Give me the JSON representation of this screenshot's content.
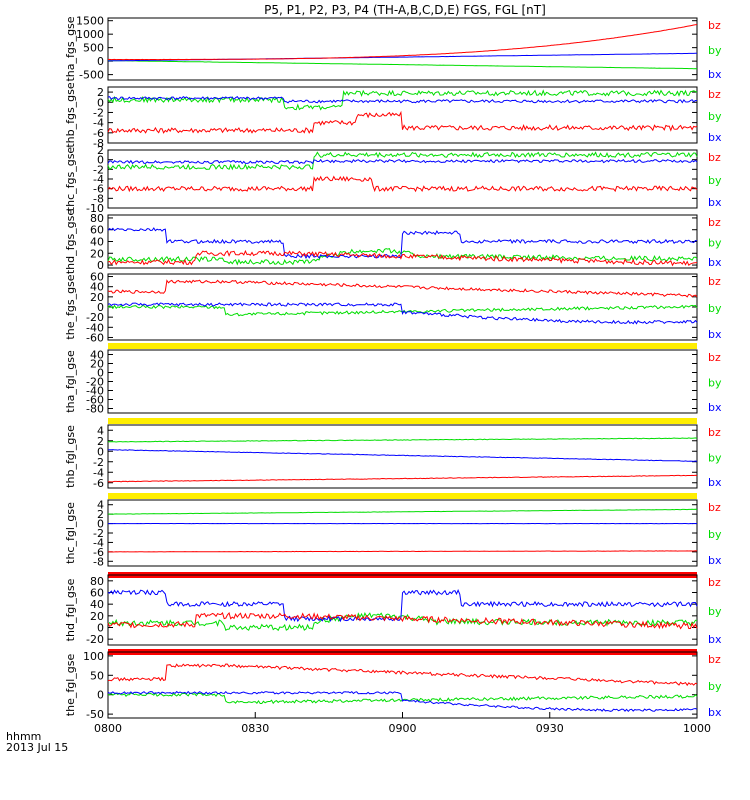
{
  "chart_data": {
    "type": "line",
    "title": "P5, P1, P2, P3, P4 (TH-A,B,C,D,E) FGS, FGL [nT]",
    "x_ticks": [
      "0800",
      "0830",
      "0900",
      "0930",
      "1000"
    ],
    "x_label": "hhmm",
    "date_label": "2013 Jul 15",
    "colors": {
      "bz": "#ff0000",
      "by": "#00dd00",
      "bx": "#0000ff"
    },
    "panels": [
      {
        "ylabel": "tha_fgs_gse",
        "ylim": [
          -700,
          1600
        ],
        "yticks": [
          "1500",
          "1000",
          "500",
          "0",
          "-500"
        ],
        "yvals": [
          1500,
          1000,
          500,
          0,
          -500
        ],
        "legend": [
          "bz",
          "by",
          "bx"
        ],
        "bar_after": null
      },
      {
        "ylabel": "thb_fgs_gse",
        "ylim": [
          -8,
          3
        ],
        "yticks": [
          "2",
          "0",
          "-2",
          "-4",
          "-6",
          "-8"
        ],
        "yvals": [
          2,
          0,
          -2,
          -4,
          -6,
          -8
        ],
        "legend": [
          "bz",
          "by",
          "bx"
        ],
        "bar_after": null
      },
      {
        "ylabel": "thc_fgs_gse",
        "ylim": [
          -10,
          2
        ],
        "yticks": [
          "2",
          "0",
          "-2",
          "-4",
          "-6",
          "-8",
          "-10"
        ],
        "yvals": [
          2,
          0,
          -2,
          -4,
          -6,
          -8,
          -10
        ],
        "legend": [
          "bz",
          "by",
          "bx"
        ],
        "bar_after": null
      },
      {
        "ylabel": "thd_fgs_gse",
        "ylim": [
          -5,
          85
        ],
        "yticks": [
          "80",
          "60",
          "40",
          "20",
          "0"
        ],
        "yvals": [
          80,
          60,
          40,
          20,
          0
        ],
        "legend": [
          "bz",
          "by",
          "bx"
        ],
        "bar_after": null
      },
      {
        "ylabel": "the_fgs_gse",
        "ylim": [
          -65,
          65
        ],
        "yticks": [
          "60",
          "40",
          "20",
          "0",
          "-20",
          "-40",
          "-60"
        ],
        "yvals": [
          60,
          40,
          20,
          0,
          -20,
          -40,
          -60
        ],
        "legend": [
          "bz",
          "by",
          "bx"
        ],
        "bar_after": "yellow"
      },
      {
        "ylabel": "tha_fgl_gse",
        "ylim": [
          -90,
          50
        ],
        "yticks": [
          "40",
          "20",
          "0",
          "-20",
          "-40",
          "-60",
          "-80"
        ],
        "yvals": [
          40,
          20,
          0,
          -20,
          -40,
          -60,
          -80
        ],
        "legend": [
          "bz",
          "by",
          "bx"
        ],
        "bar_after": "yellow"
      },
      {
        "ylabel": "thb_fgl_gse",
        "ylim": [
          -7,
          5
        ],
        "yticks": [
          "4",
          "2",
          "0",
          "-2",
          "-4",
          "-6"
        ],
        "yvals": [
          4,
          2,
          0,
          -2,
          -4,
          -6
        ],
        "legend": [
          "bz",
          "by",
          "bx"
        ],
        "bar_after": "yellow"
      },
      {
        "ylabel": "thc_fgl_gse",
        "ylim": [
          -9,
          5
        ],
        "yticks": [
          "4",
          "2",
          "0",
          "-2",
          "-4",
          "-6",
          "-8"
        ],
        "yvals": [
          4,
          2,
          0,
          -2,
          -4,
          -6,
          -8
        ],
        "legend": [
          "bz",
          "by",
          "bx"
        ],
        "bar_after": "red"
      },
      {
        "ylabel": "thd_fgl_gse",
        "ylim": [
          -30,
          90
        ],
        "yticks": [
          "80",
          "60",
          "40",
          "20",
          "0",
          "-20"
        ],
        "yvals": [
          80,
          60,
          40,
          20,
          0,
          -20
        ],
        "legend": [
          "bz",
          "by",
          "bx"
        ],
        "bar_after": "red"
      },
      {
        "ylabel": "the_fgl_gse",
        "ylim": [
          -60,
          110
        ],
        "yticks": [
          "100",
          "50",
          "0",
          "-50"
        ],
        "yvals": [
          100,
          50,
          0,
          -50
        ],
        "legend": [
          "bz",
          "by",
          "bx"
        ],
        "bar_after": null
      }
    ]
  }
}
